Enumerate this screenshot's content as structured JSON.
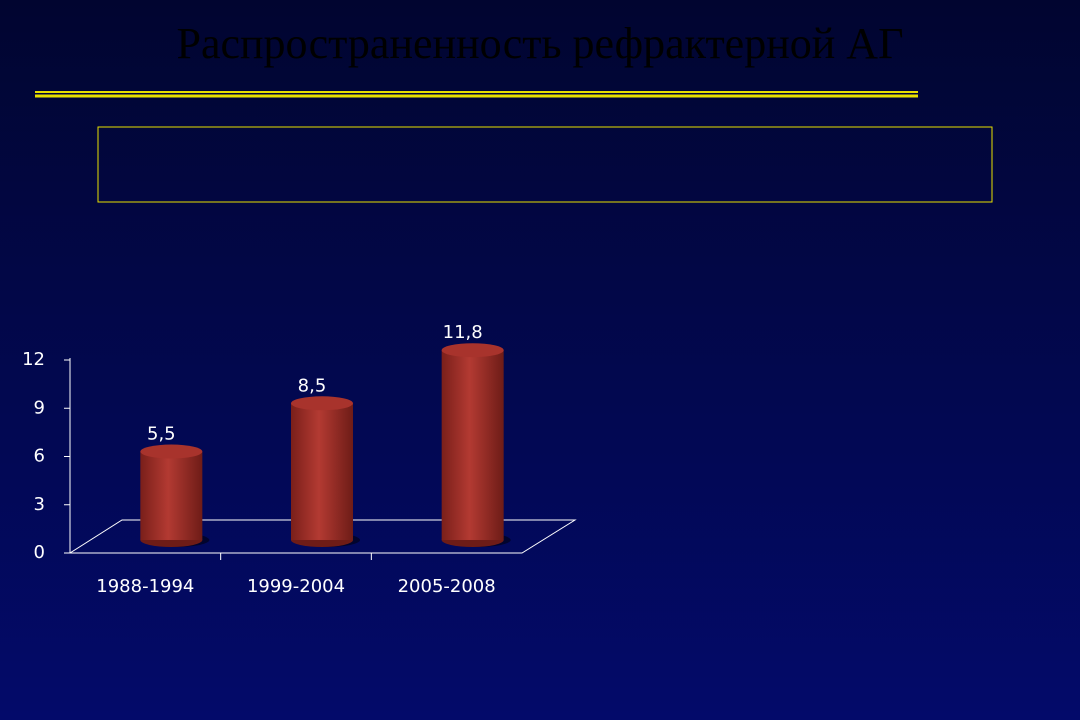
{
  "chart_data": {
    "type": "bar",
    "title": "Распространенность рефрактерной АГ",
    "categories": [
      "1988-1994",
      "1999-2004",
      "2005-2008"
    ],
    "values": [
      5.5,
      8.5,
      11.8
    ],
    "value_labels": [
      "5,5",
      "8,5",
      "11,8"
    ],
    "color": "#a8332c",
    "ylim": [
      0,
      12
    ],
    "yticks": [
      0,
      3,
      6,
      9,
      12
    ]
  }
}
